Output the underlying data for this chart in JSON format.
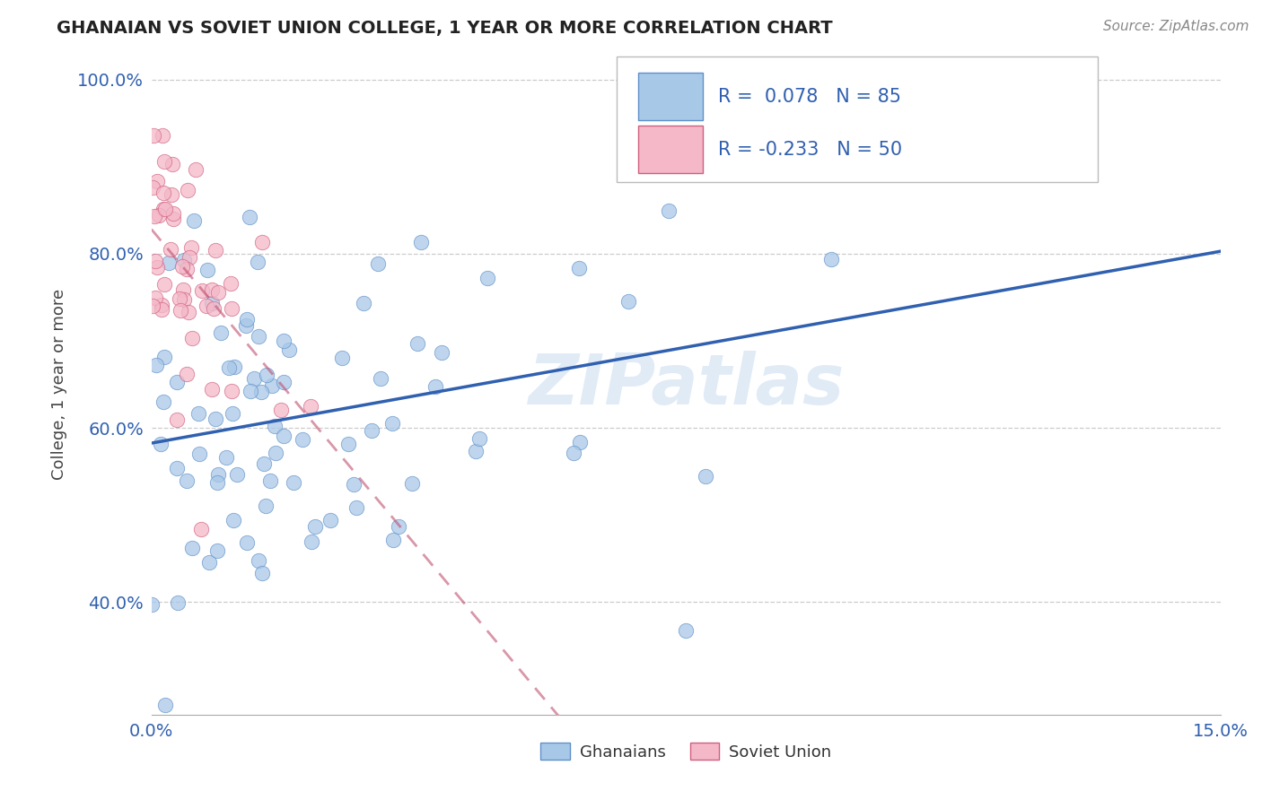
{
  "title": "GHANAIAN VS SOVIET UNION COLLEGE, 1 YEAR OR MORE CORRELATION CHART",
  "source": "Source: ZipAtlas.com",
  "ylabel": "College, 1 year or more",
  "xlim": [
    0.0,
    0.15
  ],
  "ylim": [
    0.27,
    1.03
  ],
  "xticks": [
    0.0,
    0.15
  ],
  "xtick_labels": [
    "0.0%",
    "15.0%"
  ],
  "yticks": [
    0.4,
    0.6,
    0.8,
    1.0
  ],
  "ytick_labels": [
    "40.0%",
    "60.0%",
    "80.0%",
    "100.0%"
  ],
  "R_ghanaian": 0.078,
  "N_ghanaian": 85,
  "R_soviet": -0.233,
  "N_soviet": 50,
  "color_ghanaian": "#a8c8e8",
  "color_soviet": "#f4b8c8",
  "edge_ghanaian": "#6090c8",
  "edge_soviet": "#d06080",
  "line_color_ghanaian": "#3060b0",
  "line_color_soviet": "#c05070",
  "watermark": "ZIPatlas",
  "legend_box_gh": "#a8c8e8",
  "legend_box_sv": "#f4b8c8"
}
